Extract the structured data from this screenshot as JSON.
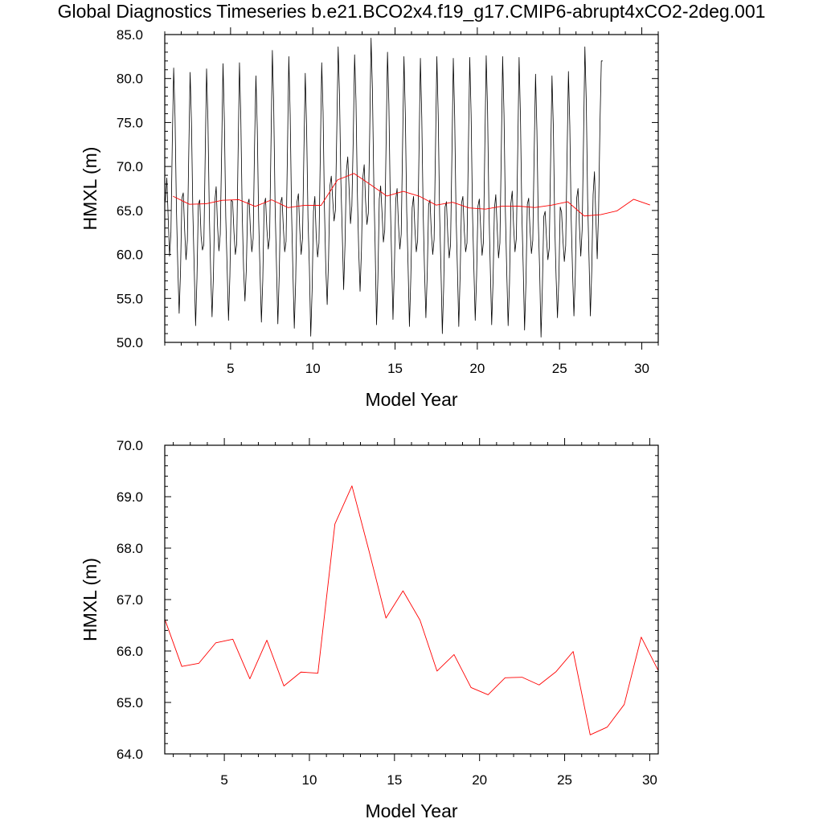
{
  "title": "Global Diagnostics Timeseries b.e21.BCO2x4.f19_g17.CMIP6-abrupt4xCO2-2deg.001",
  "colors": {
    "monthly": "#000000",
    "annual": "#ff0000",
    "frame": "#000000",
    "background": "#ffffff"
  },
  "chart_data": [
    {
      "type": "line",
      "xlabel": "Model Year",
      "ylabel": "HMXL (m)",
      "xlim": [
        1,
        31
      ],
      "ylim": [
        50,
        85
      ],
      "xticks": [
        5,
        10,
        15,
        20,
        25,
        30
      ],
      "xtick_labels": [
        "5",
        "10",
        "15",
        "20",
        "25",
        "30"
      ],
      "yticks": [
        50,
        55,
        60,
        65,
        70,
        75,
        80,
        85
      ],
      "ytick_labels": [
        "50.0",
        "55.0",
        "60.0",
        "65.0",
        "70.0",
        "75.0",
        "80.0",
        "85.0"
      ],
      "grid": false,
      "series": [
        {
          "style": "monthly",
          "color": "#000000",
          "x_start": 1.0417,
          "x_step": 0.08333,
          "values": [
            66.1,
            68.7,
            64.2,
            59.8,
            62.5,
            72.8,
            81.2,
            75.6,
            65.3,
            58.7,
            53.3,
            58.1,
            66.4,
            67.0,
            62.8,
            59.4,
            61.6,
            71.5,
            80.7,
            74.9,
            64.8,
            58.3,
            51.9,
            57.3,
            65.7,
            66.2,
            62.1,
            60.5,
            61.1,
            71.2,
            81.1,
            75.2,
            64.8,
            58.0,
            52.9,
            57.6,
            66.0,
            67.7,
            63.3,
            60.4,
            62.3,
            71.8,
            81.7,
            75.1,
            64.3,
            58.5,
            52.5,
            57.5,
            66.2,
            66.0,
            62.5,
            60.0,
            61.2,
            71.5,
            81.8,
            75.3,
            64.7,
            58.4,
            54.7,
            58.3,
            65.7,
            66.3,
            62.8,
            60.3,
            61.8,
            72.3,
            80.3,
            74.3,
            64.0,
            58.1,
            52.3,
            57.0,
            65.6,
            66.4,
            62.9,
            60.6,
            62.0,
            72.6,
            83.2,
            76.7,
            65.5,
            58.8,
            52.1,
            57.6,
            65.9,
            66.5,
            63.1,
            60.3,
            61.5,
            71.6,
            82.5,
            75.9,
            64.9,
            58.0,
            51.6,
            56.9,
            66.0,
            66.9,
            62.8,
            60.0,
            61.8,
            71.6,
            80.6,
            74.2,
            64.1,
            58.6,
            50.7,
            55.9,
            64.9,
            66.6,
            62.1,
            59.7,
            61.3,
            71.5,
            81.8,
            76.2,
            65.3,
            58.4,
            54.3,
            59.5,
            67.8,
            68.9,
            66.3,
            63.8,
            65.0,
            74.0,
            83.6,
            78.0,
            68.2,
            62.4,
            56.0,
            61.1,
            69.5,
            71.1,
            67.4,
            63.5,
            65.5,
            73.1,
            82.7,
            77.5,
            67.1,
            60.4,
            55.8,
            60.5,
            68.7,
            70.2,
            66.1,
            63.4,
            64.7,
            73.6,
            84.6,
            78.8,
            68.1,
            60.8,
            52.0,
            57.3,
            66.3,
            67.8,
            64.8,
            61.4,
            62.8,
            72.9,
            83.0,
            77.1,
            66.4,
            59.6,
            52.6,
            58.3,
            66.2,
            67.5,
            63.4,
            60.6,
            62.3,
            72.4,
            82.5,
            76.0,
            65.0,
            58.8,
            51.8,
            57.3,
            65.3,
            66.6,
            62.9,
            60.3,
            61.6,
            71.9,
            82.3,
            75.6,
            64.9,
            58.2,
            52.8,
            57.8,
            65.7,
            66.2,
            62.4,
            60.0,
            61.7,
            71.9,
            82.5,
            75.8,
            64.7,
            58.3,
            51.0,
            56.4,
            65.4,
            66.0,
            62.1,
            59.6,
            61.1,
            71.4,
            82.3,
            75.7,
            64.6,
            58.4,
            51.8,
            57.7,
            65.8,
            66.6,
            62.7,
            60.3,
            61.3,
            72.0,
            82.4,
            75.9,
            64.8,
            58.5,
            52.5,
            57.5,
            65.5,
            66.3,
            62.9,
            59.9,
            61.4,
            72.2,
            82.6,
            76.4,
            65.2,
            58.4,
            52.0,
            56.9,
            65.2,
            66.8,
            63.0,
            59.6,
            61.3,
            71.6,
            82.5,
            75.9,
            64.9,
            58.0,
            51.9,
            56.7,
            65.8,
            67.2,
            63.2,
            60.3,
            61.8,
            71.7,
            82.4,
            75.6,
            64.7,
            58.6,
            51.4,
            56.8,
            65.7,
            66.4,
            62.7,
            60.1,
            61.6,
            71.5,
            80.5,
            74.1,
            63.8,
            58.2,
            50.6,
            56.3,
            64.3,
            64.9,
            61.8,
            59.4,
            60.7,
            70.8,
            80.3,
            74.4,
            63.5,
            57.4,
            52.8,
            57.2,
            65.4,
            64.8,
            61.6,
            59.2,
            61.0,
            71.2,
            80.8,
            74.7,
            64.1,
            58.1,
            53.0,
            57.6,
            66.4,
            67.5,
            63.3,
            59.8,
            62.8,
            72.9,
            83.6,
            77.5,
            66.3,
            59.7,
            53.0,
            58.1,
            66.8,
            69.4,
            64.1,
            59.5,
            65.0,
            74.8,
            82.0,
            82.0
          ]
        },
        {
          "style": "annual",
          "color": "#ff0000",
          "x": [
            1.5,
            2.5,
            3.5,
            4.5,
            5.5,
            6.5,
            7.5,
            8.5,
            9.5,
            10.5,
            11.5,
            12.5,
            13.5,
            14.5,
            15.5,
            16.5,
            17.5,
            18.5,
            19.5,
            20.5,
            21.5,
            22.5,
            23.5,
            24.5,
            25.5,
            26.5,
            27.5,
            28.5,
            29.5,
            30.5
          ],
          "values": [
            66.62,
            65.7,
            65.76,
            66.16,
            66.23,
            65.46,
            66.21,
            65.32,
            65.59,
            65.57,
            68.47,
            69.21,
            67.95,
            66.64,
            67.17,
            66.6,
            65.61,
            65.93,
            65.29,
            65.15,
            65.48,
            65.49,
            65.34,
            65.6,
            65.99,
            64.37,
            64.52,
            64.96,
            66.27,
            65.62
          ]
        }
      ]
    },
    {
      "type": "line",
      "xlabel": "Model Year",
      "ylabel": "HMXL (m)",
      "xlim": [
        1.5,
        30.5
      ],
      "ylim": [
        64,
        70
      ],
      "xticks": [
        5,
        10,
        15,
        20,
        25,
        30
      ],
      "xtick_labels": [
        "5",
        "10",
        "15",
        "20",
        "25",
        "30"
      ],
      "yticks": [
        64,
        65,
        66,
        67,
        68,
        69,
        70
      ],
      "ytick_labels": [
        "64.0",
        "65.0",
        "66.0",
        "67.0",
        "68.0",
        "69.0",
        "70.0"
      ],
      "grid": false,
      "series": [
        {
          "style": "annual",
          "color": "#ff0000",
          "x": [
            1.5,
            2.5,
            3.5,
            4.5,
            5.5,
            6.5,
            7.5,
            8.5,
            9.5,
            10.5,
            11.5,
            12.5,
            13.5,
            14.5,
            15.5,
            16.5,
            17.5,
            18.5,
            19.5,
            20.5,
            21.5,
            22.5,
            23.5,
            24.5,
            25.5,
            26.5,
            27.5,
            28.5,
            29.5,
            30.5
          ],
          "values": [
            66.62,
            65.7,
            65.76,
            66.16,
            66.23,
            65.46,
            66.21,
            65.32,
            65.59,
            65.57,
            68.47,
            69.21,
            67.95,
            66.64,
            67.17,
            66.6,
            65.61,
            65.93,
            65.29,
            65.15,
            65.48,
            65.49,
            65.34,
            65.6,
            65.99,
            64.37,
            64.52,
            64.96,
            66.27,
            65.62
          ]
        }
      ]
    }
  ]
}
